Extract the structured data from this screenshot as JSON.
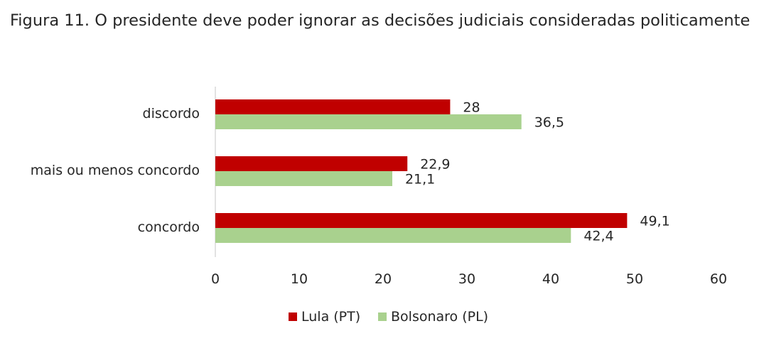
{
  "chart_data": {
    "type": "bar",
    "orientation": "horizontal",
    "title": "Figura 11. O presidente deve poder ignorar as decisões judiciais consideradas politicamente",
    "categories": [
      "discordo",
      "mais ou menos concordo",
      "concordo"
    ],
    "series": [
      {
        "name": "Lula (PT)",
        "color": "#c00000",
        "values": [
          28,
          22.9,
          49.1
        ],
        "labels": [
          "28",
          "22,9",
          "49,1"
        ]
      },
      {
        "name": "Bolsonaro (PL)",
        "color": "#a9d18e",
        "values": [
          36.5,
          21.1,
          42.4
        ],
        "labels": [
          "36,5",
          "21,1",
          "42,4"
        ]
      }
    ],
    "xlim": [
      0,
      60
    ],
    "xticks": [
      "0",
      "10",
      "20",
      "30",
      "40",
      "50",
      "60"
    ],
    "grid": false,
    "legend_position": "bottom"
  }
}
